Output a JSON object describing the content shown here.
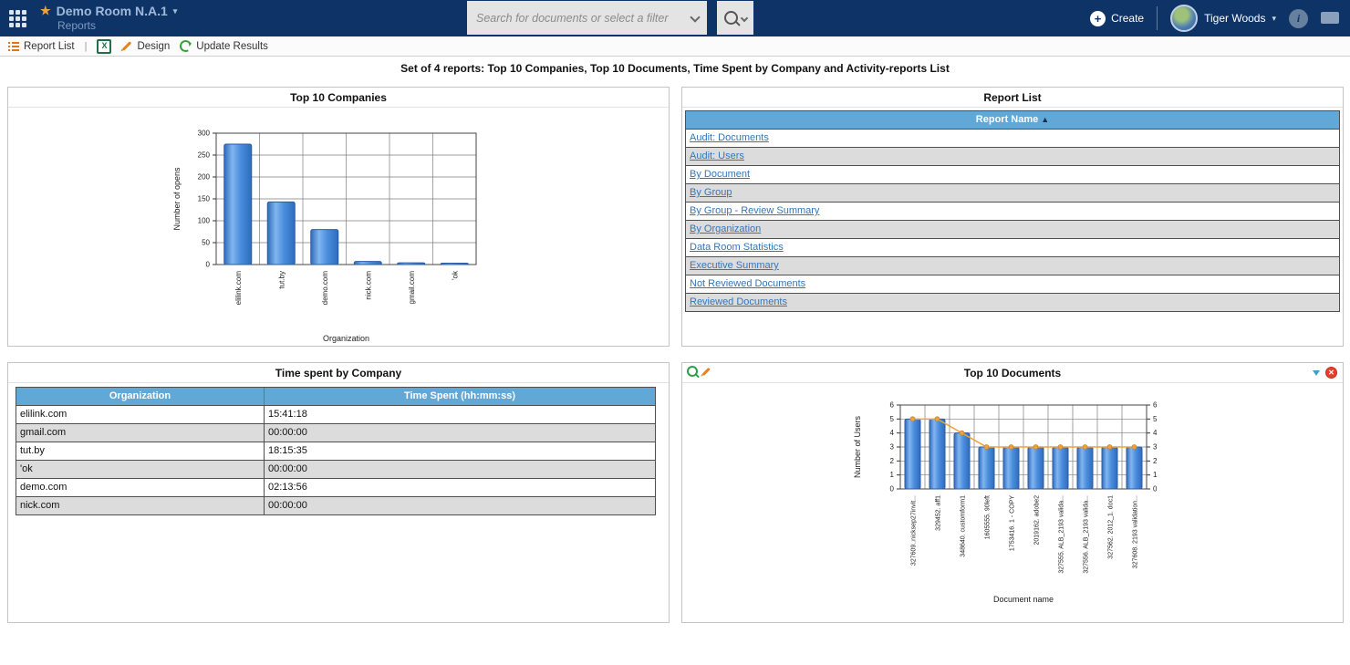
{
  "header": {
    "room_title": "Demo Room N.A.1",
    "subtitle": "Reports",
    "search_placeholder": "Search for documents or select a filter",
    "create_label": "Create",
    "user_name": "Tiger Woods"
  },
  "toolbar": {
    "report_list_label": "Report List",
    "separator": "|",
    "design_label": "Design",
    "update_results_label": "Update Results"
  },
  "page_heading": "Set of 4 reports: Top 10 Companies, Top 10 Documents, Time Spent by Company and Activity-reports List",
  "icons": {
    "star": "★",
    "caret_down": "▾",
    "sort_asc": "▲",
    "plus": "+",
    "info": "i",
    "excel_x": "X",
    "close_x": "✕"
  },
  "colors": {
    "navbar": "#0e3367",
    "table_header_blue": "#61a8d7",
    "link_blue": "#3077be",
    "bar_blue": "#4a8ede",
    "line_orange": "#efa23b",
    "close_red": "#e2402c"
  },
  "panels": {
    "top_companies": {
      "title": "Top 10 Companies"
    },
    "report_list": {
      "title": "Report List",
      "column_header": "Report Name",
      "reports": [
        "Audit: Documents",
        "Audit: Users",
        "By Document",
        "By Group",
        "By Group - Review Summary",
        "By Organization",
        "Data Room Statistics",
        "Executive Summary",
        "Not Reviewed Documents",
        "Reviewed Documents"
      ]
    },
    "time_spent": {
      "title": "Time spent by Company",
      "columns": [
        "Organization",
        "Time Spent (hh:mm:ss)"
      ],
      "rows": [
        [
          "elilink.com",
          "15:41:18"
        ],
        [
          "gmail.com",
          "00:00:00"
        ],
        [
          "tut.by",
          "18:15:35"
        ],
        [
          "'ok",
          "00:00:00"
        ],
        [
          "demo.com",
          "02:13:56"
        ],
        [
          "nick.com",
          "00:00:00"
        ]
      ]
    },
    "top_documents": {
      "title": "Top 10 Documents"
    }
  },
  "chart_data": [
    {
      "id": "top_companies",
      "type": "bar",
      "title": "Top 10 Companies",
      "categories": [
        "elilink.com",
        "tut.by",
        "demo.com",
        "nick.com",
        "gmail.com",
        "'ok"
      ],
      "values": [
        275,
        143,
        80,
        7,
        4,
        3
      ],
      "xlabel": "Organization",
      "ylabel": "Number of opens",
      "ylim": [
        0,
        300
      ],
      "ytick_step": 50,
      "grid": true,
      "legend": "none",
      "bar_color": "#4a8ede"
    },
    {
      "id": "top_documents",
      "type": "bar",
      "title": "Top 10 Documents",
      "categories": [
        "327609..nicksep27invit...",
        "329452. aff1",
        "348640. customform1",
        "1605555. 90left",
        "1753416. 1 - COPY",
        "2019162. adobe2",
        "327555. ALB_2193 valida...",
        "327556. ALB_2193 valida...",
        "327562. 2012_1. doc1",
        "327608. 2193 validation..."
      ],
      "series": [
        {
          "name": "bars",
          "type": "bar",
          "values": [
            5,
            5,
            4,
            3,
            3,
            3,
            3,
            3,
            3,
            3
          ]
        },
        {
          "name": "line",
          "type": "line",
          "values": [
            5,
            5,
            4,
            3,
            3,
            3,
            3,
            3,
            3,
            3
          ]
        }
      ],
      "xlabel": "Document name",
      "ylabel": "Number of Users",
      "ylim": [
        0,
        6
      ],
      "ytick_step": 1,
      "grid": true,
      "right_axis": true,
      "legend": "none",
      "bar_color": "#4a8ede",
      "line_color": "#efa23b"
    }
  ]
}
